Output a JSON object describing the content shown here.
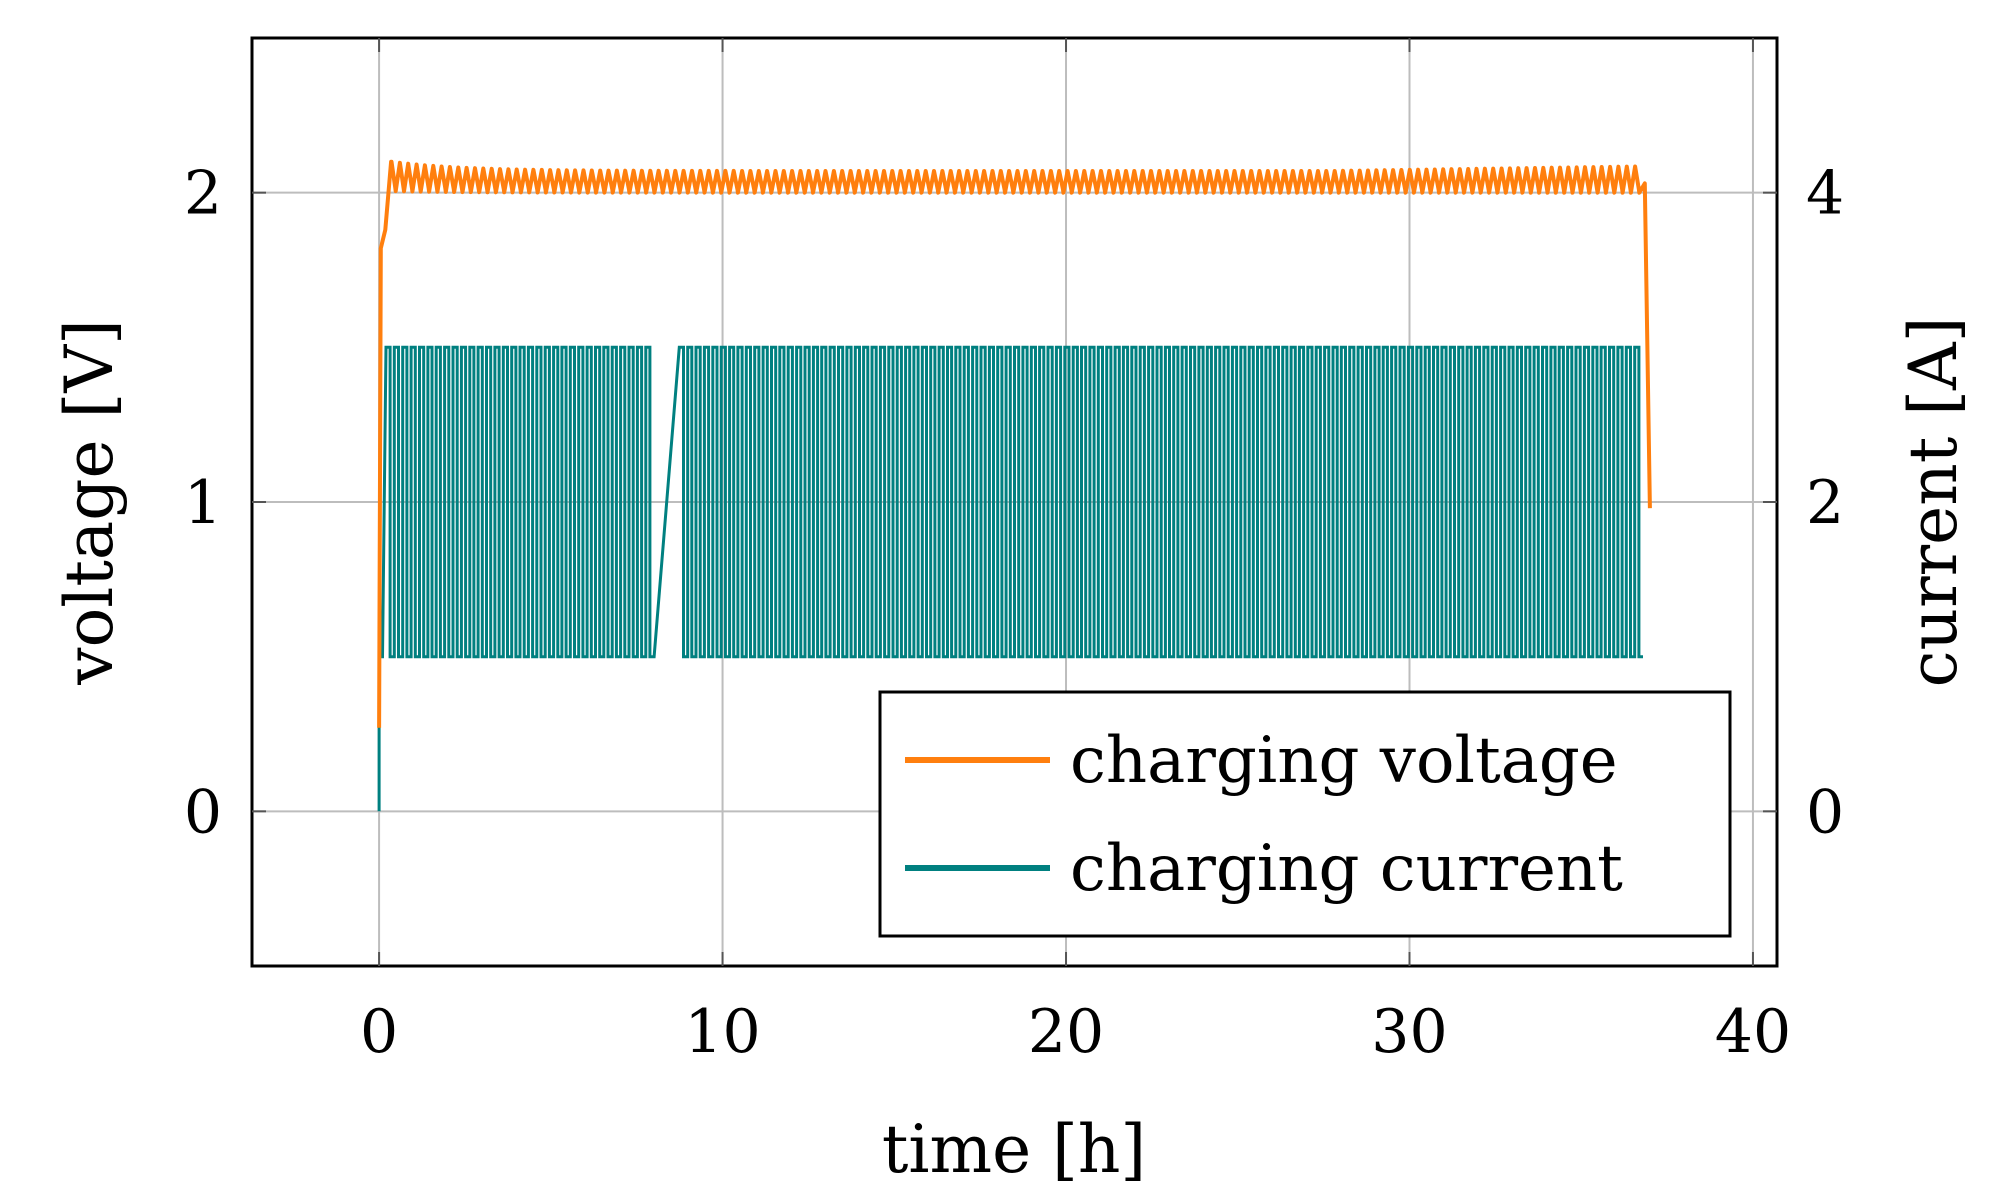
{
  "chart_data": {
    "type": "line",
    "xlabel": "time [h]",
    "ylabel_left": "voltage [V]",
    "ylabel_right": "current [A]",
    "xlim": [
      -3.7,
      40.7
    ],
    "ylim_left": [
      -0.5,
      2.5
    ],
    "ylim_right": [
      -1,
      5
    ],
    "x_ticks": [
      0,
      10,
      20,
      30,
      40
    ],
    "y_left_ticks": [
      0,
      1,
      2
    ],
    "y_right_ticks": [
      0,
      2,
      4
    ],
    "x_tick_labels": [
      "0",
      "10",
      "20",
      "30",
      "40"
    ],
    "y_left_tick_labels": [
      "0",
      "1",
      "2"
    ],
    "y_right_tick_labels": [
      "0",
      "2",
      "4"
    ],
    "grid": true,
    "legend_position": "bottom-right",
    "series": [
      {
        "name": "charging voltage",
        "axis": "left",
        "color": "#ff7f0e",
        "description": "rises from about 0.27 V at t=0 to ~1.85 V, then oscillates between ~2.00 and ~2.10 V from 0.3 h to 36.8 h, drops to ~0.98 V at 37 h",
        "start_time": 0,
        "rise_end_time": 0.35,
        "initial_value": 0.27,
        "plateau_low": 2.0,
        "plateau_high": 2.07,
        "cycle_start": 0.35,
        "cycle_end": 36.8,
        "cycle_count": 150,
        "gap_time": 8.3,
        "end_time": 37.0,
        "end_value": 0.98
      },
      {
        "name": "charging current",
        "axis": "right",
        "color": "#008080",
        "description": "pulsed current switching between ~1.0 A and ~3.0 A from 0.2 h to 36.8 h, with a brief gap near 8.3 h",
        "start_time": 0,
        "initial_value": 0,
        "pulse_low": 1.0,
        "pulse_high": 3.0,
        "cycle_start": 0.2,
        "cycle_end": 36.8,
        "cycle_count": 150,
        "gap_time": 8.3
      }
    ]
  }
}
